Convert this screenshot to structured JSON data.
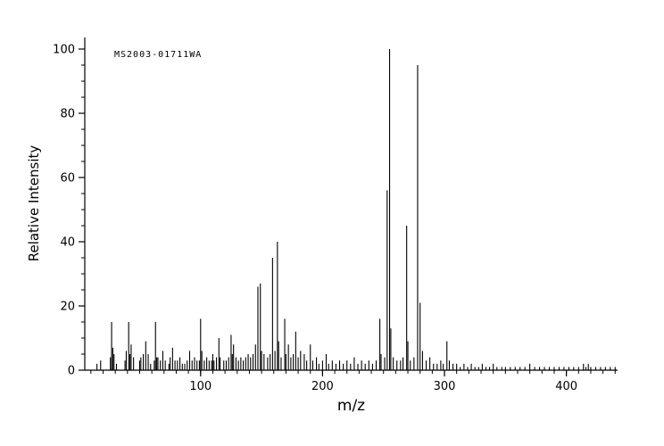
{
  "figure": {
    "watermark": "MS2003-01711WA"
  },
  "chart_data": {
    "type": "bar",
    "chart_kind": "mass-spectrum",
    "title": "",
    "xlabel": "m/z",
    "ylabel": "Relative Intensity",
    "xlim": [
      5,
      442
    ],
    "ylim": [
      0,
      100
    ],
    "x_major_ticks": [
      100,
      200,
      300,
      400
    ],
    "x_minor_tick_step": 10,
    "y_major_ticks": [
      0,
      20,
      40,
      60,
      80,
      100
    ],
    "y_minor_tick_step": 5,
    "grid": false,
    "legend": false,
    "axis_color": "#000000",
    "peak_color": "#000000",
    "peaks": [
      [
        15,
        2
      ],
      [
        18,
        3
      ],
      [
        26,
        4
      ],
      [
        27,
        15
      ],
      [
        28,
        7
      ],
      [
        29,
        5
      ],
      [
        31,
        2
      ],
      [
        38,
        3
      ],
      [
        39,
        6
      ],
      [
        41,
        15
      ],
      [
        42,
        5
      ],
      [
        43,
        8
      ],
      [
        45,
        4
      ],
      [
        50,
        3
      ],
      [
        51,
        4
      ],
      [
        53,
        5
      ],
      [
        55,
        9
      ],
      [
        57,
        5
      ],
      [
        59,
        2
      ],
      [
        62,
        3
      ],
      [
        63,
        15
      ],
      [
        64,
        4
      ],
      [
        65,
        4
      ],
      [
        67,
        3
      ],
      [
        69,
        6
      ],
      [
        71,
        3
      ],
      [
        74,
        2
      ],
      [
        75,
        4
      ],
      [
        77,
        7
      ],
      [
        79,
        3
      ],
      [
        81,
        3
      ],
      [
        83,
        4
      ],
      [
        85,
        2
      ],
      [
        87,
        2
      ],
      [
        89,
        3
      ],
      [
        91,
        6
      ],
      [
        93,
        3
      ],
      [
        95,
        4
      ],
      [
        97,
        3
      ],
      [
        99,
        3
      ],
      [
        100,
        16
      ],
      [
        101,
        6
      ],
      [
        103,
        3
      ],
      [
        105,
        4
      ],
      [
        107,
        3
      ],
      [
        109,
        3
      ],
      [
        110,
        5
      ],
      [
        111,
        3
      ],
      [
        113,
        4
      ],
      [
        115,
        10
      ],
      [
        116,
        4
      ],
      [
        119,
        3
      ],
      [
        121,
        3
      ],
      [
        123,
        4
      ],
      [
        125,
        11
      ],
      [
        126,
        5
      ],
      [
        127,
        8
      ],
      [
        129,
        4
      ],
      [
        131,
        3
      ],
      [
        133,
        4
      ],
      [
        135,
        3
      ],
      [
        137,
        4
      ],
      [
        139,
        5
      ],
      [
        141,
        4
      ],
      [
        143,
        5
      ],
      [
        145,
        8
      ],
      [
        147,
        26
      ],
      [
        149,
        27
      ],
      [
        150,
        6
      ],
      [
        152,
        5
      ],
      [
        155,
        4
      ],
      [
        157,
        5
      ],
      [
        159,
        35
      ],
      [
        161,
        6
      ],
      [
        163,
        40
      ],
      [
        164,
        9
      ],
      [
        166,
        4
      ],
      [
        169,
        16
      ],
      [
        170,
        5
      ],
      [
        172,
        8
      ],
      [
        174,
        4
      ],
      [
        176,
        5
      ],
      [
        178,
        12
      ],
      [
        180,
        4
      ],
      [
        182,
        6
      ],
      [
        185,
        5
      ],
      [
        187,
        3
      ],
      [
        190,
        8
      ],
      [
        192,
        3
      ],
      [
        195,
        4
      ],
      [
        197,
        2
      ],
      [
        200,
        3
      ],
      [
        203,
        5
      ],
      [
        205,
        2
      ],
      [
        208,
        3
      ],
      [
        211,
        2
      ],
      [
        214,
        3
      ],
      [
        217,
        2
      ],
      [
        220,
        3
      ],
      [
        223,
        2
      ],
      [
        226,
        4
      ],
      [
        229,
        2
      ],
      [
        232,
        3
      ],
      [
        235,
        2
      ],
      [
        238,
        3
      ],
      [
        241,
        2
      ],
      [
        244,
        3
      ],
      [
        247,
        16
      ],
      [
        248,
        5
      ],
      [
        251,
        4
      ],
      [
        253,
        56
      ],
      [
        255,
        100
      ],
      [
        256,
        13
      ],
      [
        258,
        4
      ],
      [
        261,
        3
      ],
      [
        264,
        3
      ],
      [
        266,
        4
      ],
      [
        269,
        45
      ],
      [
        270,
        9
      ],
      [
        272,
        3
      ],
      [
        275,
        4
      ],
      [
        278,
        95
      ],
      [
        280,
        21
      ],
      [
        282,
        6
      ],
      [
        285,
        3
      ],
      [
        288,
        4
      ],
      [
        291,
        2
      ],
      [
        294,
        2
      ],
      [
        297,
        3
      ],
      [
        299,
        2
      ],
      [
        302,
        9
      ],
      [
        304,
        3
      ],
      [
        307,
        2
      ],
      [
        310,
        2
      ],
      [
        313,
        1
      ],
      [
        316,
        2
      ],
      [
        319,
        1
      ],
      [
        322,
        2
      ],
      [
        325,
        1
      ],
      [
        328,
        1
      ],
      [
        331,
        2
      ],
      [
        334,
        1
      ],
      [
        337,
        1
      ],
      [
        340,
        2
      ],
      [
        343,
        1
      ],
      [
        347,
        1
      ],
      [
        350,
        1
      ],
      [
        354,
        1
      ],
      [
        358,
        1
      ],
      [
        362,
        1
      ],
      [
        366,
        1
      ],
      [
        370,
        2
      ],
      [
        374,
        1
      ],
      [
        378,
        1
      ],
      [
        382,
        1
      ],
      [
        386,
        1
      ],
      [
        390,
        1
      ],
      [
        394,
        1
      ],
      [
        398,
        1
      ],
      [
        402,
        1
      ],
      [
        406,
        1
      ],
      [
        410,
        1
      ],
      [
        414,
        2
      ],
      [
        416,
        1
      ],
      [
        418,
        2
      ],
      [
        420,
        1
      ],
      [
        424,
        1
      ],
      [
        428,
        1
      ],
      [
        432,
        1
      ],
      [
        436,
        1
      ],
      [
        440,
        1
      ]
    ]
  }
}
